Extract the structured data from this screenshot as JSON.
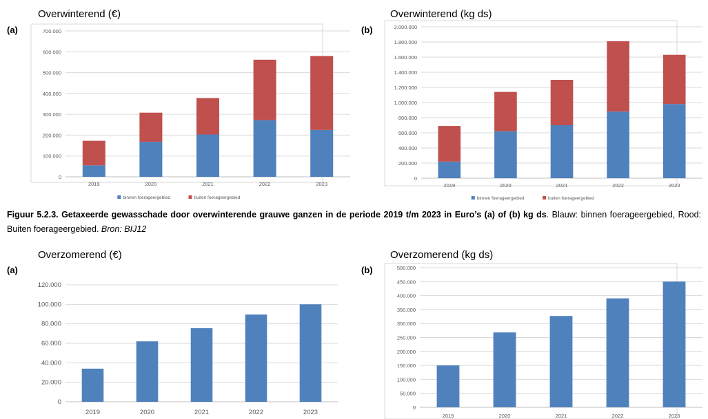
{
  "caption": {
    "figure_bold": "Figuur 5.2.3. Getaxeerde gewasschade door overwinterende grauwe ganzen in de periode 2019 t/m 2023 in Euro’s (a) of (b) kg ds",
    "rest": ". Blauw: binnen foerageergebied, Rood: Buiten foerageergebied. ",
    "source": "Bron: BIJ12"
  },
  "colors": {
    "blue": "#4f81bd",
    "red": "#c0504d",
    "grid": "#d9d9d9",
    "axis": "#bfbfbf",
    "tick": "#595959"
  },
  "chart_data": [
    {
      "id": "winter_eur",
      "type": "bar",
      "stacked": true,
      "panel_label": "(a)",
      "title": "Overwinterend (€)",
      "categories": [
        "2019",
        "2020",
        "2021",
        "2022",
        "2023"
      ],
      "series": [
        {
          "name": "binnen foerageergebied",
          "color": "#4f81bd",
          "values": [
            55000,
            168000,
            203000,
            272000,
            225000
          ]
        },
        {
          "name": "buiten foerageergebied",
          "color": "#c0504d",
          "values": [
            118000,
            140000,
            175000,
            290000,
            355000
          ]
        }
      ],
      "yticks": [
        "0",
        "100.000",
        "200.000",
        "300.000",
        "400.000",
        "500.000",
        "600.000",
        "700.000"
      ],
      "ylim": [
        0,
        700000
      ],
      "legend": "bottom",
      "grid": true
    },
    {
      "id": "winter_kg",
      "type": "bar",
      "stacked": true,
      "panel_label": "(b)",
      "title": "Overwinterend (kg ds)",
      "categories": [
        "2019",
        "2020",
        "2021",
        "2022",
        "2023"
      ],
      "series": [
        {
          "name": "binnen foerageergebied",
          "color": "#4f81bd",
          "values": [
            220000,
            620000,
            700000,
            880000,
            980000
          ]
        },
        {
          "name": "buiten foerageergebied",
          "color": "#c0504d",
          "values": [
            470000,
            520000,
            600000,
            930000,
            650000
          ]
        }
      ],
      "yticks": [
        "0",
        "200.000",
        "400.000",
        "600.000",
        "800.000",
        "1.000.000",
        "1.200.000",
        "1.400.000",
        "1.600.000",
        "1.800.000",
        "2.000.000"
      ],
      "ylim": [
        0,
        2000000
      ],
      "legend": "bottom",
      "grid": true
    },
    {
      "id": "summer_eur",
      "type": "bar",
      "stacked": false,
      "panel_label": "(a)",
      "title": "Overzomerend (€)",
      "categories": [
        "2019",
        "2020",
        "2021",
        "2022",
        "2023"
      ],
      "series": [
        {
          "color": "#4f81bd",
          "values": [
            34000,
            62000,
            75500,
            89500,
            100000
          ]
        }
      ],
      "yticks": [
        "0",
        "20.000",
        "40.000",
        "60.000",
        "80.000",
        "100.000",
        "120.000"
      ],
      "ylim": [
        0,
        120000
      ],
      "grid": true
    },
    {
      "id": "summer_kg",
      "type": "bar",
      "stacked": false,
      "panel_label": "(b)",
      "title": "Overzomerend (kg ds)",
      "categories": [
        "2019",
        "2020",
        "2021",
        "2022",
        "2023"
      ],
      "series": [
        {
          "color": "#4f81bd",
          "values": [
            150000,
            268000,
            327000,
            390000,
            450000
          ]
        }
      ],
      "yticks": [
        "0",
        "50.000",
        "100.000",
        "150.000",
        "200.000",
        "250.000",
        "300.000",
        "350.000",
        "400.000",
        "450.000",
        "500.000"
      ],
      "ylim": [
        0,
        500000
      ],
      "grid": true
    }
  ]
}
